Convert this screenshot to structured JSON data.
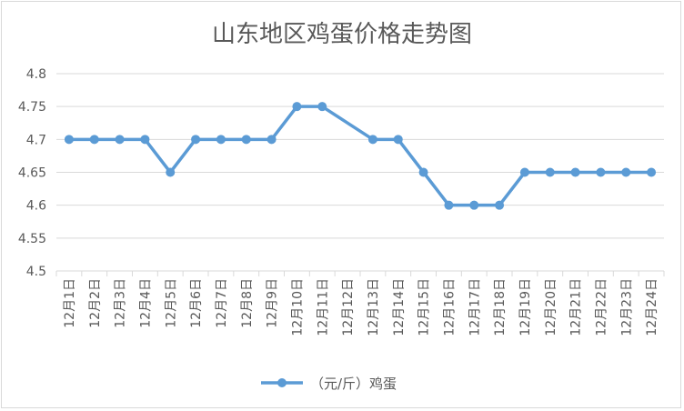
{
  "chart_data": {
    "type": "line",
    "title": "山东地区鸡蛋价格走势图",
    "xlabel": "",
    "ylabel": "",
    "categories": [
      "12月1日",
      "12月2日",
      "12月3日",
      "12月4日",
      "12月5日",
      "12月6日",
      "12月7日",
      "12月8日",
      "12月9日",
      "12月10日",
      "12月11日",
      "12月12日",
      "12月13日",
      "12月14日",
      "12月15日",
      "12月16日",
      "12月17日",
      "12月18日",
      "12月19日",
      "12月20日",
      "12月21日",
      "12月22日",
      "12月23日",
      "12月24日"
    ],
    "series": [
      {
        "name": "（元/斤）鸡蛋",
        "color": "#5b9bd5",
        "values": [
          4.7,
          4.7,
          4.7,
          4.7,
          4.65,
          4.7,
          4.7,
          4.7,
          4.7,
          4.75,
          4.75,
          null,
          4.7,
          4.7,
          4.65,
          4.6,
          4.6,
          4.6,
          4.65,
          4.65,
          4.65,
          4.65,
          4.65,
          4.65
        ]
      }
    ],
    "ylim": [
      4.5,
      4.8
    ],
    "yticks": [
      "4.5",
      "4.55",
      "4.6",
      "4.65",
      "4.7",
      "4.75",
      "4.8"
    ],
    "grid": true,
    "legend_position": "bottom"
  }
}
